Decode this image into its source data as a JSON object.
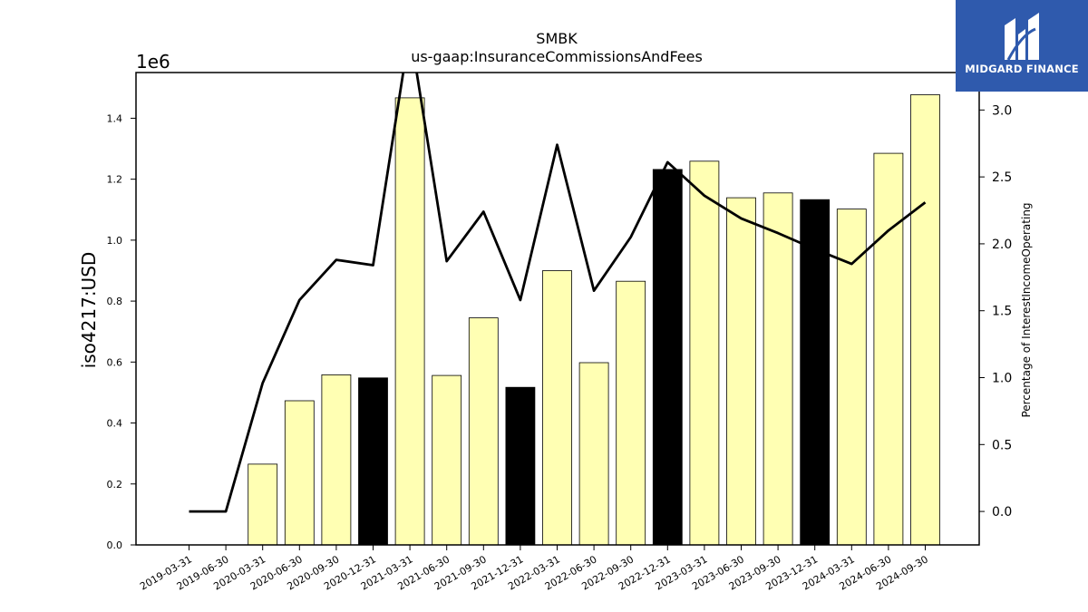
{
  "brand": {
    "name": "MIDGARD FINANCE",
    "icon": "midgard-logo-icon",
    "background": "#2f5aad"
  },
  "chart_data": {
    "type": "bar",
    "title": "SMBK",
    "subtitle": "us-gaap:InsuranceCommissionsAndFees",
    "ylabel": "iso4217:USD",
    "y_offset_label": "1e6",
    "y2label": "Percentage of InterestIncomeOperating",
    "categories": [
      "2019-03-31",
      "2019-06-30",
      "2020-03-31",
      "2020-06-30",
      "2020-09-30",
      "2020-12-31",
      "2021-03-31",
      "2021-06-30",
      "2021-09-30",
      "2021-12-31",
      "2022-03-31",
      "2022-06-30",
      "2022-09-30",
      "2022-12-31",
      "2023-03-31",
      "2023-06-30",
      "2023-09-30",
      "2023-12-31",
      "2024-03-31",
      "2024-06-30",
      "2024-09-30"
    ],
    "series": [
      {
        "values": [
          null,
          null,
          0.265,
          0.473,
          0.558,
          0.548,
          1.467,
          0.556,
          0.745,
          0.517,
          0.9,
          0.598,
          0.865,
          1.232,
          1.259,
          1.139,
          1.155,
          1.133,
          1.102,
          1.285,
          1.477
        ],
        "highlight": [
          false,
          false,
          false,
          false,
          false,
          true,
          false,
          false,
          false,
          true,
          false,
          false,
          false,
          true,
          false,
          false,
          false,
          true,
          false,
          false,
          false
        ],
        "color": "#ffffb3",
        "highlight_color": "#000000"
      },
      {
        "type": "line",
        "axis": "right",
        "values": [
          0.0,
          0.0,
          0.96,
          1.58,
          1.88,
          1.84,
          3.6,
          1.87,
          2.24,
          1.58,
          2.74,
          1.65,
          2.05,
          2.61,
          2.36,
          2.19,
          2.08,
          1.96,
          1.85,
          2.1,
          2.31
        ],
        "color": "#000000"
      }
    ],
    "ylim": [
      0,
      1.55
    ],
    "yticks": [
      "0.0",
      "0.2",
      "0.4",
      "0.6",
      "0.8",
      "1.0",
      "1.2",
      "1.4"
    ],
    "y2lim": [
      -0.25,
      3.28
    ],
    "y2ticks": [
      "0.0",
      "0.5",
      "1.0",
      "1.5",
      "2.0",
      "2.5",
      "3.0"
    ],
    "grid": false
  }
}
